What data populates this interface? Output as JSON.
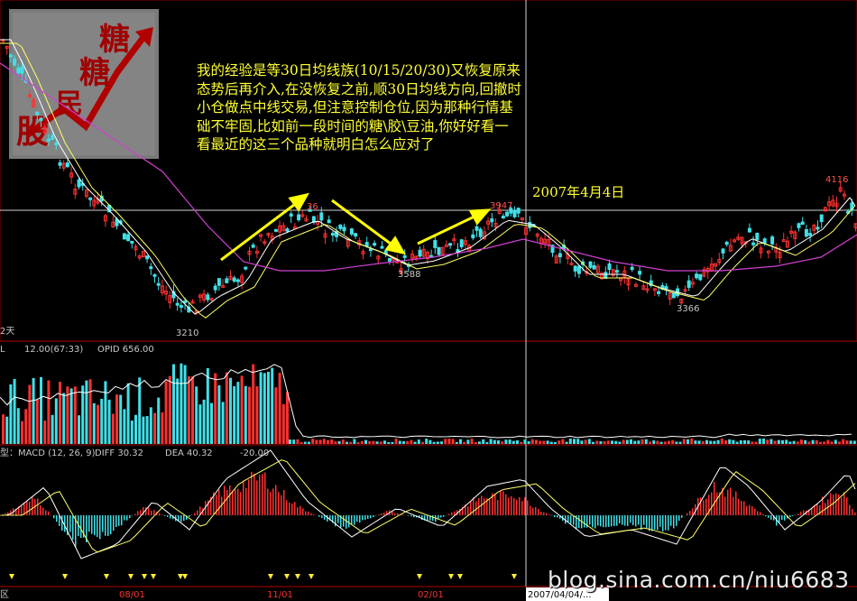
{
  "logo": {
    "chars": [
      "糖",
      "糖",
      "民",
      "股"
    ]
  },
  "annotation": {
    "lines": [
      "我的经验是等30日均线族(10/15/20/30)又恢复原来",
      "态势后再介入,在没恢复之前,顺30日均线方向,回撤时",
      "小仓做点中线交易,但注意控制仓位,因为那种行情基",
      "础不牢固,比如前一段时间的糖\\胶\\豆油,你好好看一",
      "看最近的这三个品种就明白怎么应对了"
    ],
    "date": "2007年4月4日"
  },
  "chart_data": {
    "type": "candlestick",
    "price_labels": {
      "low1": "3210",
      "mid_high": "36",
      "high2": "3947",
      "low2": "3588",
      "low3": "3366",
      "high3": "4116"
    },
    "left_period_label": "2天",
    "volume_panel": {
      "label_l": "L",
      "vol_text": "12.00(67:33)",
      "opid_text": "OPID  656.00"
    },
    "macd_panel": {
      "label": "型：MACD (12, 26, 9)",
      "diff": "DIFF  30.32",
      "dea": "DEA  40.32",
      "hist": "-20.00"
    },
    "x_ticks": [
      "08/01",
      "11/01",
      "02/01",
      "2007/04/04/..."
    ],
    "left_axis_label": "区"
  },
  "watermark": "blog.sina.com.cn/niu6683",
  "colors": {
    "up": "#ff3030",
    "down": "#40e0e8",
    "ma_yellow": "#ffff66",
    "ma_white": "#ffffff",
    "ma_magenta": "#d040d0",
    "arrow": "#ffff00",
    "grid_red": "#8b0000"
  }
}
